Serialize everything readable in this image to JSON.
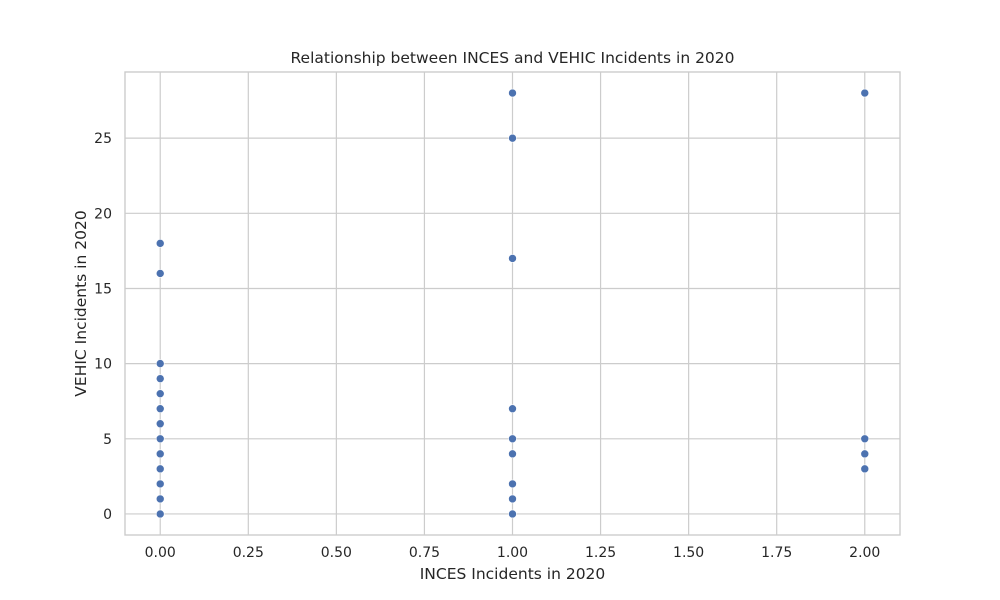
{
  "chart_data": {
    "type": "scatter",
    "title": "Relationship between INCES and VEHIC Incidents in 2020",
    "xlabel": "INCES Incidents in 2020",
    "ylabel": "VEHIC Incidents in 2020",
    "xlim": [
      -0.1,
      2.1
    ],
    "ylim": [
      -1.4,
      29.4
    ],
    "x_ticks": [
      0.0,
      0.25,
      0.5,
      0.75,
      1.0,
      1.25,
      1.5,
      1.75,
      2.0
    ],
    "x_tick_labels": [
      "0.00",
      "0.25",
      "0.50",
      "0.75",
      "1.00",
      "1.25",
      "1.50",
      "1.75",
      "2.00"
    ],
    "y_ticks": [
      0,
      5,
      10,
      15,
      20,
      25
    ],
    "y_tick_labels": [
      "0",
      "5",
      "10",
      "15",
      "20",
      "25"
    ],
    "grid": true,
    "point_color": "#4c72b0",
    "points": [
      {
        "x": 0,
        "y": 0
      },
      {
        "x": 0,
        "y": 1
      },
      {
        "x": 0,
        "y": 2
      },
      {
        "x": 0,
        "y": 3
      },
      {
        "x": 0,
        "y": 4
      },
      {
        "x": 0,
        "y": 5
      },
      {
        "x": 0,
        "y": 6
      },
      {
        "x": 0,
        "y": 7
      },
      {
        "x": 0,
        "y": 8
      },
      {
        "x": 0,
        "y": 9
      },
      {
        "x": 0,
        "y": 10
      },
      {
        "x": 0,
        "y": 16
      },
      {
        "x": 0,
        "y": 18
      },
      {
        "x": 1,
        "y": 0
      },
      {
        "x": 1,
        "y": 1
      },
      {
        "x": 1,
        "y": 2
      },
      {
        "x": 1,
        "y": 4
      },
      {
        "x": 1,
        "y": 5
      },
      {
        "x": 1,
        "y": 7
      },
      {
        "x": 1,
        "y": 17
      },
      {
        "x": 1,
        "y": 25
      },
      {
        "x": 1,
        "y": 28
      },
      {
        "x": 2,
        "y": 3
      },
      {
        "x": 2,
        "y": 4
      },
      {
        "x": 2,
        "y": 5
      },
      {
        "x": 2,
        "y": 28
      }
    ]
  }
}
